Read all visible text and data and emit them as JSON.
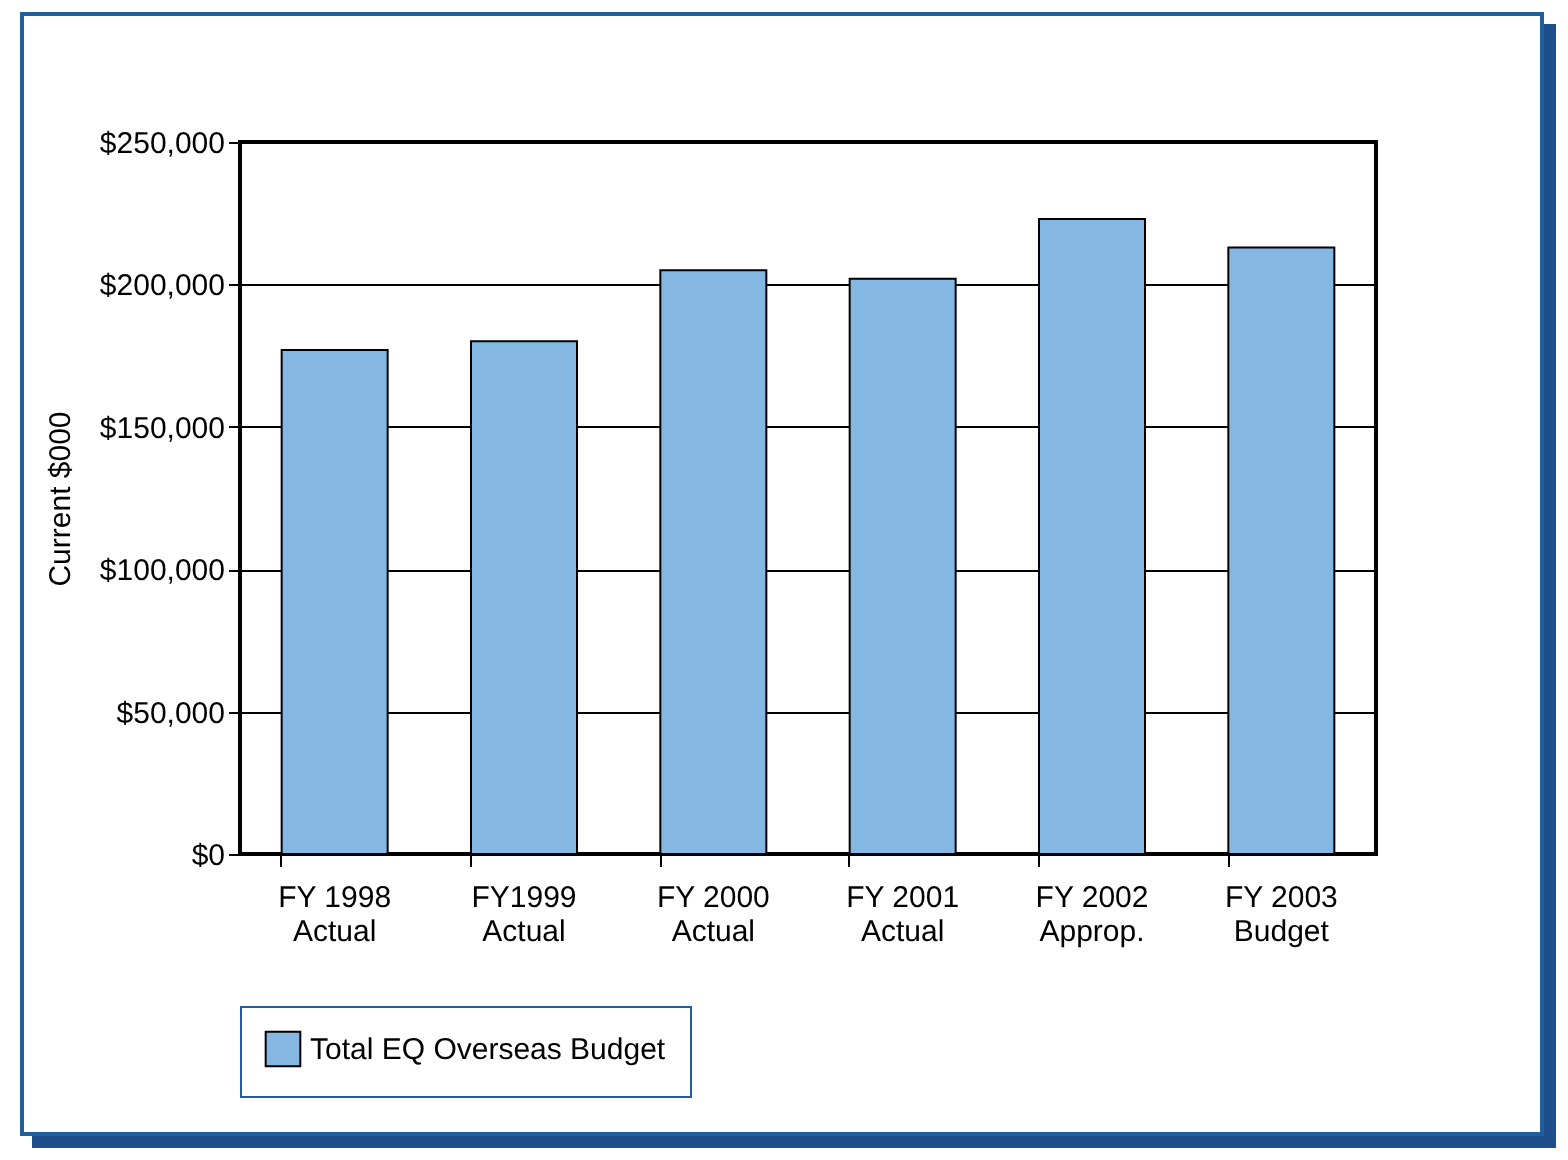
{
  "chart_data": {
    "type": "bar",
    "ylabel": "Current $000",
    "categories": [
      "FY 1998\nActual",
      "FY1999\nActual",
      "FY 2000\nActual",
      "FY 2001\nActual",
      "FY 2002\nApprop.",
      "FY 2003\nBudget"
    ],
    "series": [
      {
        "name": "Total EQ Overseas Budget",
        "color": "#84b8e2",
        "values": [
          177000,
          180000,
          205000,
          202000,
          223000,
          213000
        ]
      }
    ],
    "ylim": [
      0,
      250000
    ],
    "yticks": [
      {
        "value": 0,
        "label": "$0"
      },
      {
        "value": 50000,
        "label": "$50,000"
      },
      {
        "value": 100000,
        "label": "$100,000"
      },
      {
        "value": 150000,
        "label": "$150,000"
      },
      {
        "value": 200000,
        "label": "$200,000"
      },
      {
        "value": 250000,
        "label": "$250,000"
      }
    ],
    "grid": "y",
    "legend": "bottom"
  }
}
